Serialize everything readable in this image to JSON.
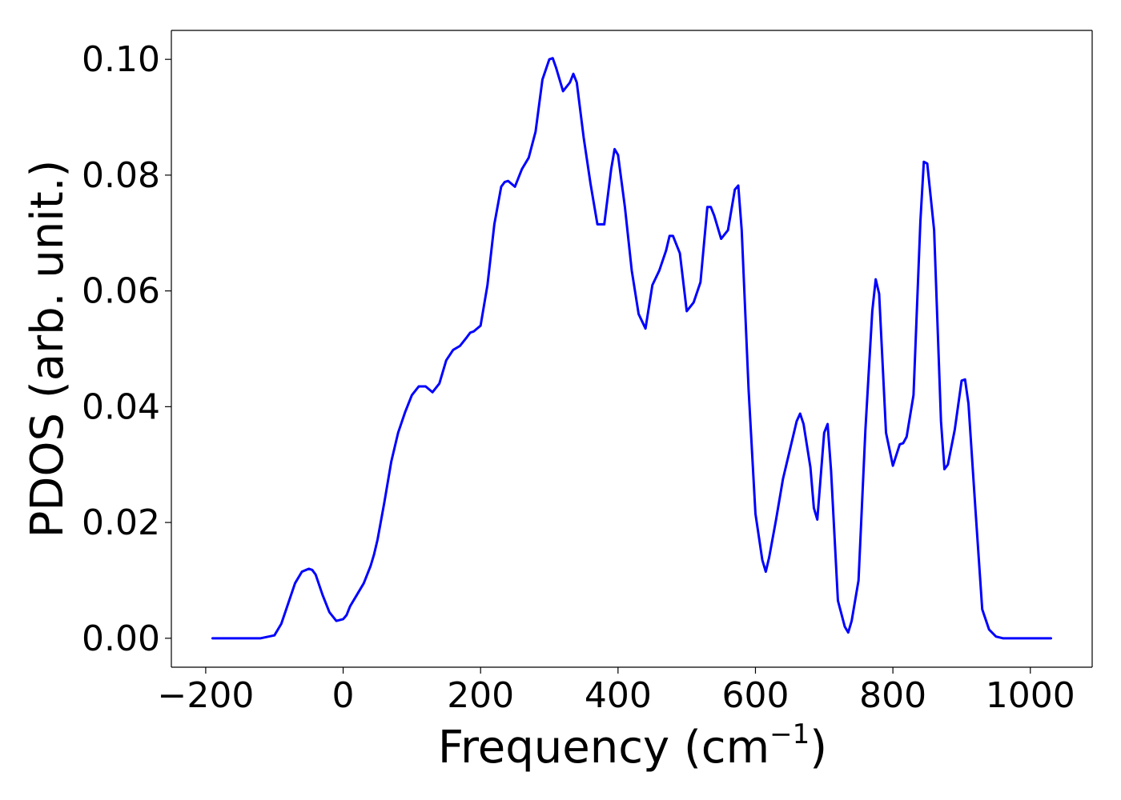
{
  "chart_data": {
    "type": "line",
    "title": "",
    "xlabel": "Frequency (cm",
    "xlabel_unit_exponent": "−1",
    "xlabel_close": ")",
    "ylabel": "PDOS (arb. unit.)",
    "xlim": [
      -250,
      1090
    ],
    "ylim": [
      -0.005,
      0.105
    ],
    "x_ticks": [
      -200,
      0,
      200,
      400,
      600,
      800,
      1000
    ],
    "x_tick_labels": [
      "−200",
      "0",
      "200",
      "400",
      "600",
      "800",
      "1000"
    ],
    "y_ticks": [
      0.0,
      0.02,
      0.04,
      0.06,
      0.08,
      0.1
    ],
    "y_tick_labels": [
      "0.00",
      "0.02",
      "0.04",
      "0.06",
      "0.08",
      "0.10"
    ],
    "grid": false,
    "legend": "none",
    "series": [
      {
        "color": "#0000ff",
        "x": [
          -190,
          -120,
          -100,
          -90,
          -80,
          -70,
          -60,
          -50,
          -45,
          -40,
          -30,
          -20,
          -10,
          0,
          5,
          10,
          20,
          30,
          40,
          45,
          50,
          60,
          70,
          80,
          90,
          100,
          110,
          120,
          130,
          140,
          150,
          160,
          170,
          180,
          185,
          190,
          200,
          210,
          220,
          230,
          235,
          240,
          250,
          260,
          270,
          280,
          290,
          300,
          305,
          310,
          320,
          330,
          335,
          340,
          350,
          360,
          370,
          380,
          390,
          395,
          400,
          410,
          420,
          430,
          440,
          450,
          460,
          470,
          475,
          480,
          490,
          500,
          510,
          520,
          530,
          535,
          540,
          550,
          560,
          570,
          575,
          580,
          590,
          600,
          610,
          615,
          620,
          630,
          640,
          650,
          660,
          665,
          670,
          680,
          685,
          690,
          700,
          705,
          710,
          720,
          730,
          735,
          740,
          750,
          760,
          770,
          775,
          780,
          790,
          800,
          810,
          815,
          820,
          830,
          840,
          845,
          850,
          860,
          870,
          875,
          880,
          890,
          900,
          905,
          910,
          920,
          930,
          940,
          950,
          960,
          1030
        ],
        "y": [
          0.0,
          0.0,
          0.0005,
          0.0025,
          0.006,
          0.0095,
          0.0115,
          0.012,
          0.0118,
          0.011,
          0.0075,
          0.0045,
          0.003,
          0.0033,
          0.004,
          0.0055,
          0.0075,
          0.0095,
          0.0125,
          0.0145,
          0.017,
          0.0235,
          0.0305,
          0.0355,
          0.039,
          0.042,
          0.0435,
          0.0435,
          0.0425,
          0.044,
          0.048,
          0.0498,
          0.0505,
          0.052,
          0.0528,
          0.053,
          0.054,
          0.061,
          0.0715,
          0.078,
          0.0788,
          0.079,
          0.078,
          0.081,
          0.083,
          0.0875,
          0.0965,
          0.1,
          0.1002,
          0.0985,
          0.0945,
          0.096,
          0.0975,
          0.096,
          0.0865,
          0.0785,
          0.0715,
          0.0715,
          0.081,
          0.0845,
          0.0835,
          0.0745,
          0.0635,
          0.056,
          0.0535,
          0.061,
          0.0635,
          0.067,
          0.0695,
          0.0695,
          0.0665,
          0.0565,
          0.058,
          0.0615,
          0.0745,
          0.0745,
          0.073,
          0.069,
          0.0705,
          0.0775,
          0.0782,
          0.0705,
          0.043,
          0.0215,
          0.0135,
          0.0115,
          0.014,
          0.0205,
          0.0275,
          0.0325,
          0.0375,
          0.0388,
          0.037,
          0.0295,
          0.0225,
          0.0205,
          0.0355,
          0.037,
          0.029,
          0.0065,
          0.002,
          0.001,
          0.003,
          0.01,
          0.036,
          0.0565,
          0.062,
          0.0595,
          0.0355,
          0.0298,
          0.0335,
          0.0337,
          0.0348,
          0.042,
          0.072,
          0.0823,
          0.082,
          0.0705,
          0.0375,
          0.0292,
          0.03,
          0.036,
          0.0445,
          0.0447,
          0.0405,
          0.0225,
          0.005,
          0.0015,
          0.0003,
          0.0,
          0.0
        ]
      }
    ]
  }
}
